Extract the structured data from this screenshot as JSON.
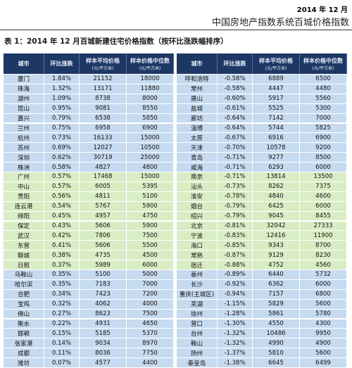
{
  "header": {
    "date": "2014 年 12 月",
    "title": "中国房地产指数系统百城价格指数"
  },
  "table": {
    "caption": "表 1：2014 年 12 月百城新建住宅价格指数（按环比涨跌幅排序）",
    "columns": [
      {
        "main": "城市"
      },
      {
        "main": "环比涨跌"
      },
      {
        "main": "样本平均价格",
        "sub": "(元/平方米)"
      },
      {
        "main": "样本价格中位数",
        "sub": "(元/平方米)"
      }
    ],
    "left_rows": [
      [
        "厦门",
        "1.84%",
        "21152",
        "18000"
      ],
      [
        "珠海",
        "1.32%",
        "13171",
        "11880"
      ],
      [
        "湖州",
        "1.09%",
        "8738",
        "8000"
      ],
      [
        "昆山",
        "0.95%",
        "9081",
        "8550"
      ],
      [
        "嘉兴",
        "0.79%",
        "6538",
        "5850"
      ],
      [
        "兰州",
        "0.75%",
        "6958",
        "6900"
      ],
      [
        "杭州",
        "0.73%",
        "16133",
        "15000"
      ],
      [
        "苏州",
        "0.69%",
        "12027",
        "10500"
      ],
      [
        "深圳",
        "0.62%",
        "30719",
        "25000"
      ],
      [
        "株洲",
        "0.58%",
        "4827",
        "4800"
      ],
      [
        "广州",
        "0.57%",
        "17468",
        "15000"
      ],
      [
        "中山",
        "0.57%",
        "6005",
        "5395"
      ],
      [
        "贵阳",
        "0.56%",
        "4811",
        "5100"
      ],
      [
        "连云港",
        "0.54%",
        "5767",
        "5900"
      ],
      [
        "绵阳",
        "0.45%",
        "4957",
        "4750"
      ],
      [
        "保定",
        "0.43%",
        "5606",
        "5900"
      ],
      [
        "武汉",
        "0.42%",
        "7806",
        "7500"
      ],
      [
        "东营",
        "0.41%",
        "5606",
        "5500"
      ],
      [
        "聊城",
        "0.38%",
        "4735",
        "4500"
      ],
      [
        "日照",
        "0.37%",
        "5989",
        "6000"
      ],
      [
        "马鞍山",
        "0.35%",
        "5100",
        "5000"
      ],
      [
        "哈尔滨",
        "0.35%",
        "7183",
        "7000"
      ],
      [
        "合肥",
        "0.34%",
        "7423",
        "7200"
      ],
      [
        "宝鸡",
        "0.32%",
        "4062",
        "4000"
      ],
      [
        "佛山",
        "0.27%",
        "8623",
        "7500"
      ],
      [
        "衡水",
        "0.22%",
        "4931",
        "4650"
      ],
      [
        "邯郸",
        "0.15%",
        "5185",
        "5370"
      ],
      [
        "张家港",
        "0.14%",
        "9034",
        "8970"
      ],
      [
        "成都",
        "0.11%",
        "8036",
        "7750"
      ],
      [
        "潍坊",
        "0.07%",
        "4577",
        "4400"
      ]
    ],
    "right_rows": [
      [
        "呼和浩特",
        "-0.58%",
        "6889",
        "6500"
      ],
      [
        "常州",
        "-0.58%",
        "4447",
        "4480"
      ],
      [
        "唐山",
        "-0.60%",
        "5917",
        "5560"
      ],
      [
        "盐城",
        "-0.61%",
        "5525",
        "5300"
      ],
      [
        "廊坊",
        "-0.64%",
        "7142",
        "7000"
      ],
      [
        "淄博",
        "-0.64%",
        "5744",
        "5825"
      ],
      [
        "太原",
        "-0.67%",
        "6916",
        "6900"
      ],
      [
        "天津",
        "-0.70%",
        "10578",
        "9200"
      ],
      [
        "青岛",
        "-0.71%",
        "9277",
        "8500"
      ],
      [
        "威海",
        "-0.71%",
        "6293",
        "6000"
      ],
      [
        "南京",
        "-0.71%",
        "13814",
        "13500"
      ],
      [
        "汕头",
        "-0.73%",
        "8262",
        "7375"
      ],
      [
        "淮安",
        "-0.78%",
        "4840",
        "4600"
      ],
      [
        "烟台",
        "-0.79%",
        "6425",
        "6000"
      ],
      [
        "绍兴",
        "-0.79%",
        "9045",
        "8455"
      ],
      [
        "北京",
        "-0.81%",
        "32042",
        "27333"
      ],
      [
        "宁波",
        "-0.83%",
        "12416",
        "11900"
      ],
      [
        "海口",
        "-0.85%",
        "9343",
        "8700"
      ],
      [
        "常熟",
        "-0.87%",
        "9129",
        "8230"
      ],
      [
        "宿迁",
        "-0.88%",
        "4752",
        "4560"
      ],
      [
        "泰州",
        "-0.89%",
        "6440",
        "5732"
      ],
      [
        "长沙",
        "-0.92%",
        "6362",
        "6000"
      ],
      [
        "重庆(主城区)",
        "-0.94%",
        "7157",
        "6800"
      ],
      [
        "芜湖",
        "-1.15%",
        "5829",
        "5600"
      ],
      [
        "徐州",
        "-1.28%",
        "5861",
        "5780"
      ],
      [
        "营口",
        "-1.30%",
        "4550",
        "4300"
      ],
      [
        "台州",
        "-1.32%",
        "10486",
        "9950"
      ],
      [
        "鞍山",
        "-1.32%",
        "4990",
        "4900"
      ],
      [
        "扬州",
        "-1.37%",
        "5810",
        "5600"
      ],
      [
        "秦皇岛",
        "-1.38%",
        "6645",
        "6499"
      ]
    ]
  }
}
